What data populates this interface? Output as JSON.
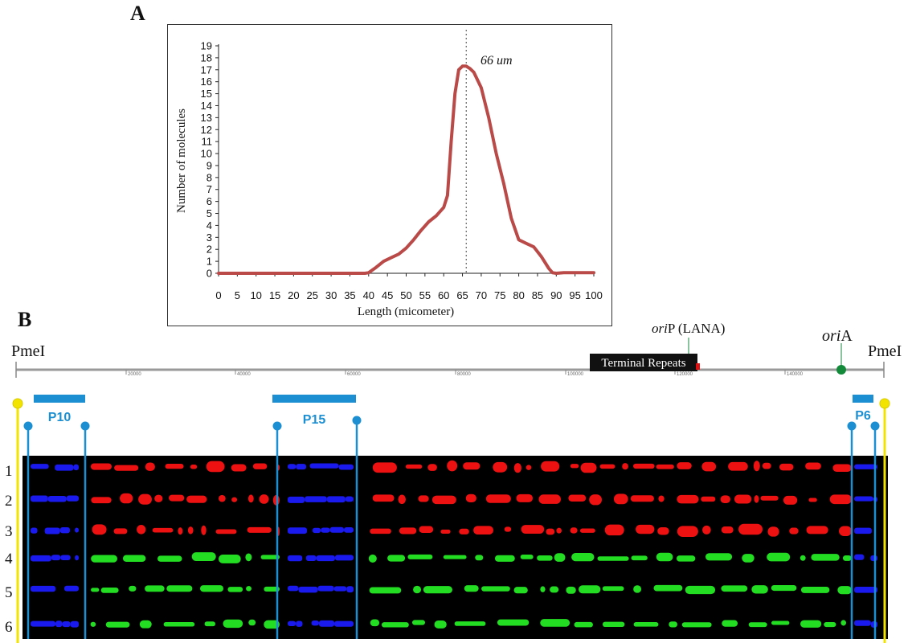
{
  "panelA": {
    "label": "A",
    "annotation": "66 um",
    "chart_data": {
      "type": "line",
      "xlabel": "Length (micometer)",
      "ylabel": "Number of molecules",
      "xlim": [
        0,
        100
      ],
      "ylim": [
        0,
        19
      ],
      "xticks": [
        0,
        5,
        10,
        15,
        20,
        25,
        30,
        35,
        40,
        45,
        50,
        55,
        60,
        65,
        70,
        75,
        80,
        85,
        90,
        95,
        100
      ],
      "yticks": [
        0,
        1,
        2,
        3,
        4,
        5,
        6,
        7,
        8,
        9,
        10,
        11,
        12,
        13,
        14,
        15,
        16,
        17,
        18,
        19
      ],
      "grid": false,
      "series": [
        {
          "color": "#b94a48",
          "x": [
            0,
            5,
            10,
            15,
            20,
            25,
            30,
            35,
            39,
            40,
            42,
            44,
            46,
            48,
            50,
            52,
            54,
            56,
            58,
            60,
            61,
            62,
            63,
            64,
            65,
            66,
            67,
            68,
            70,
            72,
            74,
            76,
            78,
            80,
            82,
            84,
            86,
            88,
            89,
            90,
            92,
            95,
            100
          ],
          "y": [
            0,
            0,
            0,
            0,
            0,
            0,
            0,
            0,
            0,
            0.05,
            0.5,
            1.0,
            1.3,
            1.6,
            2.1,
            2.8,
            3.6,
            4.3,
            4.8,
            5.5,
            6.5,
            11,
            15,
            17,
            17.3,
            17.3,
            17.1,
            16.8,
            15.5,
            13,
            10,
            7.5,
            4.6,
            2.8,
            2.5,
            2.2,
            1.4,
            0.4,
            0.05,
            0,
            0.05,
            0.05,
            0.05
          ]
        }
      ],
      "reference_line": {
        "x": 66,
        "style": "dotted"
      }
    }
  },
  "panelB": {
    "label": "B",
    "map": {
      "left_site": "PmeI",
      "right_site": "PmeI",
      "scale_ticks": [
        "20000",
        "40000",
        "60000",
        "80000",
        "100000",
        "120000",
        "140000"
      ],
      "terminal_repeats_label": "Terminal Repeats",
      "oriP_italic": "ori",
      "oriP_rest": "P (LANA)",
      "oriA_italic": "ori",
      "oriA_rest": "A"
    },
    "probes": [
      {
        "label": "P10",
        "color": "#1b8fd2"
      },
      {
        "label": "P15",
        "color": "#1b8fd2"
      },
      {
        "label": "P6",
        "color": "#1b8fd2"
      }
    ],
    "lanes": [
      {
        "number": "1",
        "color": "red"
      },
      {
        "number": "2",
        "color": "red"
      },
      {
        "number": "3",
        "color": "red"
      },
      {
        "number": "4",
        "color": "green"
      },
      {
        "number": "5",
        "color": "green"
      },
      {
        "number": "6",
        "color": "green"
      }
    ],
    "colors": {
      "probe_blue": "#1b8fd2",
      "marker_yellow": "#f2e400",
      "signal_red": "#ee1111",
      "signal_green": "#22dd22",
      "signal_blue": "#1a1aee",
      "oriA_green": "#138a3a",
      "line_red": "#b94a48"
    }
  }
}
